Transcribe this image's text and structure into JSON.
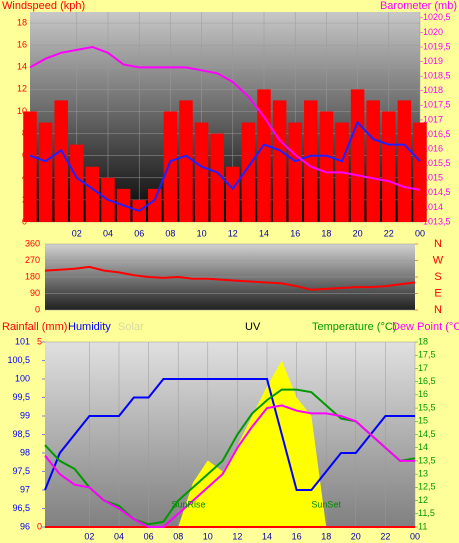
{
  "chart_data": [
    {
      "type": "line",
      "ylabel": "Windspeed (kph)",
      "y2label": "Barometer (mb)",
      "x": [
        -1,
        0,
        1,
        2,
        3,
        4,
        5,
        6,
        7,
        8,
        9,
        10,
        11,
        12,
        13,
        14,
        15,
        16,
        17,
        18,
        19,
        20,
        21,
        22,
        23,
        24
      ],
      "xlim": [
        -1,
        24
      ],
      "xticks": [
        {
          "value": 2,
          "label": "02"
        },
        {
          "value": 4,
          "label": "04"
        },
        {
          "value": 6,
          "label": "06"
        },
        {
          "value": 8,
          "label": "08"
        },
        10,
        12,
        14,
        16,
        18,
        20,
        22,
        {
          "value": 24,
          "label": "00"
        }
      ],
      "ylim": [
        0,
        19
      ],
      "yticks": [
        0,
        2,
        4,
        6,
        8,
        10,
        12,
        14,
        16,
        18
      ],
      "y2lim": [
        1013.5,
        1020.7
      ],
      "y2ticks": [
        {
          "value": 1013.5,
          "label": "1013,5"
        },
        1014,
        {
          "value": 1014.5,
          "label": "1014,5"
        },
        1015,
        {
          "value": 1015.5,
          "label": "1015,5"
        },
        1016,
        {
          "value": 1016.5,
          "label": "1016,5"
        },
        1017,
        {
          "value": 1017.5,
          "label": "1017,5"
        },
        1018,
        {
          "value": 1018.5,
          "label": "1018,5"
        },
        1019,
        {
          "value": 1019.5,
          "label": "1019,5"
        },
        1020,
        {
          "value": 1020.5,
          "label": "1020,5"
        }
      ],
      "grid": true,
      "series": [
        {
          "color": "#ff0000",
          "style": "bar",
          "axis": "y",
          "values": [
            10,
            9,
            11,
            7,
            5,
            4,
            3,
            2,
            3,
            10,
            11,
            9,
            8,
            5,
            9,
            12,
            11,
            9,
            11,
            10,
            9,
            12,
            11,
            10,
            11,
            9
          ]
        },
        {
          "color": "#2020ff",
          "style": "line",
          "axis": "y",
          "values": [
            6,
            5.5,
            6.5,
            4,
            3,
            2,
            1.5,
            1,
            2,
            5.5,
            6,
            5,
            4.5,
            3,
            5,
            7,
            6.5,
            5.5,
            6,
            6,
            5.5,
            9,
            7.5,
            7,
            7,
            5.5
          ]
        },
        {
          "color": "#ff00ff",
          "style": "line",
          "axis": "y2",
          "values": [
            1018.8,
            1019.1,
            1019.3,
            1019.4,
            1019.5,
            1019.3,
            1018.9,
            1018.8,
            1018.8,
            1018.8,
            1018.8,
            1018.7,
            1018.6,
            1018.3,
            1017.8,
            1017.1,
            1016.3,
            1015.8,
            1015.4,
            1015.2,
            1015.2,
            1015.1,
            1015,
            1014.9,
            1014.7,
            1014.6
          ]
        }
      ]
    },
    {
      "type": "line",
      "x": [
        -1,
        0,
        1,
        2,
        3,
        4,
        5,
        6,
        7,
        8,
        9,
        10,
        11,
        12,
        13,
        14,
        15,
        16,
        17,
        18,
        19,
        20,
        21,
        22,
        23,
        24
      ],
      "xlim": [
        -1,
        24
      ],
      "ylim": [
        0,
        360
      ],
      "yticks": [
        0,
        90,
        180,
        270,
        360
      ],
      "y2lim": [
        0,
        360
      ],
      "y2ticks": [
        {
          "value": 360,
          "label": "N"
        },
        {
          "value": 270,
          "label": "W"
        },
        {
          "value": 180,
          "label": "S"
        },
        {
          "value": 90,
          "label": "E"
        },
        {
          "value": 0,
          "label": "N"
        }
      ],
      "grid": true,
      "series": [
        {
          "color": "#ff0000",
          "style": "line",
          "axis": "y",
          "values": [
            215,
            220,
            225,
            235,
            215,
            205,
            190,
            180,
            175,
            180,
            170,
            170,
            165,
            160,
            155,
            150,
            145,
            130,
            110,
            115,
            120,
            125,
            125,
            130,
            140,
            150
          ]
        }
      ]
    },
    {
      "type": "line",
      "x": [
        -1,
        0,
        1,
        2,
        3,
        4,
        5,
        6,
        7,
        8,
        9,
        10,
        11,
        12,
        13,
        14,
        15,
        16,
        17,
        18,
        19,
        20,
        21,
        22,
        23,
        24
      ],
      "xlim": [
        -1,
        24
      ],
      "xticks": [
        {
          "value": 2,
          "label": "02"
        },
        {
          "value": 4,
          "label": "04"
        },
        {
          "value": 6,
          "label": "06"
        },
        {
          "value": 8,
          "label": "08"
        },
        10,
        12,
        14,
        16,
        18,
        20,
        22,
        {
          "value": 24,
          "label": "00"
        }
      ],
      "ylim": [
        0,
        5
      ],
      "yticks": [
        0,
        5
      ],
      "y3lim": [
        96,
        101
      ],
      "y3ticks": [
        96,
        {
          "value": 96.5,
          "label": "96,5"
        },
        97,
        {
          "value": 97.5,
          "label": "97,5"
        },
        98,
        {
          "value": 98.5,
          "label": "98,5"
        },
        99,
        {
          "value": 99.5,
          "label": "99,5"
        },
        100,
        {
          "value": 100.5,
          "label": "100,5"
        },
        101
      ],
      "y2lim": [
        11,
        18
      ],
      "y2ticks": [
        11,
        {
          "value": 11.5,
          "label": "11,5"
        },
        12,
        {
          "value": 12.5,
          "label": "12,5"
        },
        13,
        {
          "value": 13.5,
          "label": "13,5"
        },
        14,
        {
          "value": 14.5,
          "label": "14,5"
        },
        15,
        {
          "value": 15.5,
          "label": "15,5"
        },
        16,
        {
          "value": 16.5,
          "label": "16,5"
        },
        17,
        {
          "value": 17.5,
          "label": "17,5"
        },
        18
      ],
      "grid": true,
      "series": [
        {
          "name": "Rainfall (mm)",
          "color": "#ff0000",
          "style": "line",
          "axis": "y",
          "values": [
            0,
            0,
            0,
            0,
            0,
            0,
            0,
            0,
            0,
            0,
            0,
            0,
            0,
            0,
            0,
            0,
            0,
            0,
            0,
            0,
            0,
            0,
            0,
            0,
            0,
            0
          ]
        },
        {
          "name": "Humidity",
          "color": "#0000ff",
          "style": "line",
          "axis": "y3",
          "values": [
            97,
            98,
            98.5,
            99,
            99,
            99,
            99.5,
            99.5,
            100,
            100,
            100,
            100,
            100,
            100,
            100,
            100,
            98.5,
            97,
            97,
            97.5,
            98,
            98,
            98.5,
            99,
            99,
            99
          ]
        },
        {
          "name": "Solar",
          "color": "#d8d8a0",
          "style": "line",
          "axis": "y",
          "values": [
            null,
            null,
            null,
            null,
            null,
            null,
            null,
            null,
            null,
            null,
            null,
            null,
            null,
            null,
            null,
            null,
            null,
            null,
            null,
            null,
            null,
            null,
            null,
            null,
            null,
            null
          ]
        },
        {
          "name": "UV",
          "color": "#ffff00",
          "style": "area",
          "axis": "y",
          "values": [
            0,
            0,
            0,
            0,
            0,
            0,
            0,
            0,
            0,
            0,
            1.2,
            1.8,
            1.5,
            2.2,
            3,
            3.8,
            4.5,
            3.5,
            3,
            0,
            0,
            0,
            0,
            0,
            0,
            0
          ]
        },
        {
          "name": "Temperature (°C)",
          "color": "#009900",
          "style": "line",
          "axis": "y2",
          "values": [
            14.1,
            13.5,
            13.2,
            12.5,
            12,
            11.8,
            11.3,
            11.1,
            11.2,
            12,
            12.5,
            13,
            13.5,
            14.5,
            15.3,
            15.8,
            16.2,
            16.2,
            16.1,
            15.6,
            15.1,
            15,
            14.5,
            14,
            13.5,
            13.6
          ]
        },
        {
          "name": "Dew Point (°C",
          "color": "#ff00ff",
          "style": "line",
          "axis": "y2",
          "values": [
            13.7,
            13,
            12.6,
            12.5,
            12,
            11.7,
            11.3,
            11,
            11,
            11.5,
            12,
            12.5,
            13,
            14,
            14.8,
            15.5,
            15.6,
            15.4,
            15.3,
            15.3,
            15.2,
            15,
            14.5,
            14,
            13.5,
            13.5
          ]
        }
      ],
      "annotations": [
        {
          "text": "SunRise",
          "x": 8.7
        },
        {
          "text": "SunSet",
          "x": 18
        }
      ]
    }
  ]
}
